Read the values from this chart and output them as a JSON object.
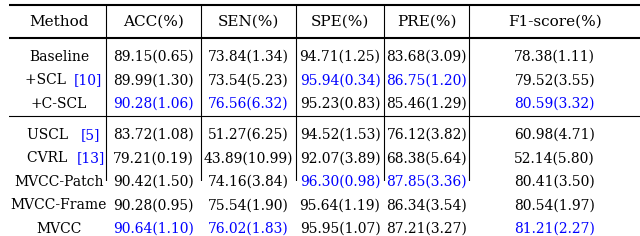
{
  "header": [
    "Method",
    "ACC(%)",
    "SEN(%)",
    "SPE(%)",
    "PRE(%)",
    "F1-score(%)"
  ],
  "rows_group1": [
    [
      "Baseline",
      "89.15(0.65)",
      "73.84(1.34)",
      "94.71(1.25)",
      "83.68(3.09)",
      "78.38(1.11)"
    ],
    [
      "+SCL [10]",
      "89.99(1.30)",
      "73.54(5.23)",
      "95.94(0.34)",
      "86.75(1.20)",
      "79.52(3.55)"
    ],
    [
      "+C-SCL",
      "90.28(1.06)",
      "76.56(6.32)",
      "95.23(0.83)",
      "85.46(1.29)",
      "80.59(3.32)"
    ]
  ],
  "rows_group2": [
    [
      "USCL [5]",
      "83.72(1.08)",
      "51.27(6.25)",
      "94.52(1.53)",
      "76.12(3.82)",
      "60.98(4.71)"
    ],
    [
      "CVRL [13]",
      "79.21(0.19)",
      "43.89(10.99)",
      "92.07(3.89)",
      "68.38(5.64)",
      "52.14(5.80)"
    ],
    [
      "MVCC-Patch",
      "90.42(1.50)",
      "74.16(3.84)",
      "96.30(0.98)",
      "87.85(3.36)",
      "80.41(3.50)"
    ],
    [
      "MVCC-Frame",
      "90.28(0.95)",
      "75.54(1.90)",
      "95.64(1.19)",
      "86.34(3.54)",
      "80.54(1.97)"
    ],
    [
      "MVCC",
      "90.64(1.10)",
      "76.02(1.83)",
      "95.95(1.07)",
      "87.21(3.27)",
      "81.21(2.27)"
    ]
  ],
  "blue_cells": {
    "1_1": false,
    "1_2": false,
    "1_3": false,
    "1_4": false,
    "1_5": false,
    "2_1": false,
    "2_2": false,
    "2_3": true,
    "2_4": true,
    "2_5": false,
    "3_1": true,
    "3_2": true,
    "3_3": false,
    "3_4": false,
    "3_5": true,
    "4_1": false,
    "4_2": false,
    "4_3": false,
    "4_4": false,
    "4_5": false,
    "5_1": false,
    "5_2": false,
    "5_3": false,
    "5_4": false,
    "5_5": false,
    "6_1": false,
    "6_2": false,
    "6_3": true,
    "6_4": true,
    "6_5": false,
    "7_1": false,
    "7_2": false,
    "7_3": false,
    "7_4": false,
    "7_5": false,
    "8_1": true,
    "8_2": true,
    "8_3": false,
    "8_4": false,
    "8_5": true
  },
  "blue_refs": {
    "2_0": true,
    "5_0": true
  },
  "figsize": [
    6.4,
    2.36
  ],
  "dpi": 100,
  "black": "#000000",
  "blue": "#0000FF",
  "header_fontsize": 11,
  "cell_fontsize": 10
}
